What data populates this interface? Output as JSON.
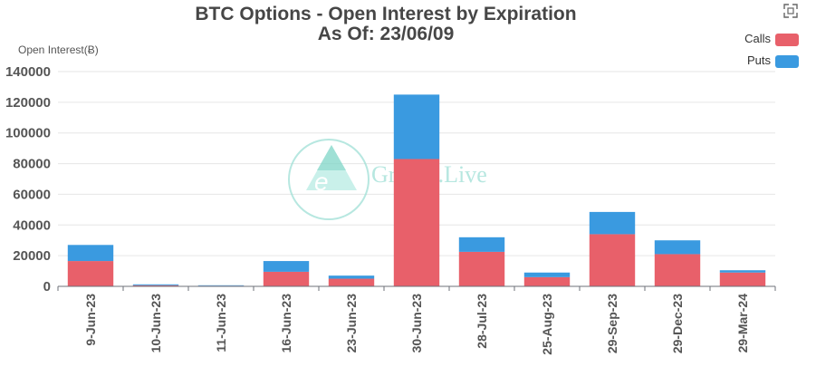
{
  "chart_data": {
    "type": "bar",
    "stacked": true,
    "title": "BTC Options - Open Interest by Expiration",
    "subtitle": "As Of: 23/06/09",
    "ylabel": "Open Interest(Ƀ)",
    "xlabel": "",
    "ylim": [
      0,
      140000
    ],
    "yticks": [
      0,
      20000,
      40000,
      60000,
      80000,
      100000,
      120000,
      140000
    ],
    "grid": true,
    "legend_position": "top-right",
    "categories": [
      "9-Jun-23",
      "10-Jun-23",
      "11-Jun-23",
      "16-Jun-23",
      "23-Jun-23",
      "30-Jun-23",
      "28-Jul-23",
      "25-Aug-23",
      "29-Sep-23",
      "29-Dec-23",
      "29-Mar-24"
    ],
    "series": [
      {
        "name": "Calls",
        "color": "#e8606a",
        "values": [
          16500,
          700,
          400,
          9500,
          5000,
          83000,
          22500,
          6000,
          34000,
          21000,
          9000
        ]
      },
      {
        "name": "Puts",
        "color": "#3a9ae0",
        "values": [
          10500,
          600,
          300,
          7000,
          2000,
          42000,
          9500,
          3000,
          14500,
          9000,
          1500
        ]
      }
    ]
  },
  "watermark": {
    "text": "Greeks.Live",
    "icon": "greeks-live-logo-icon"
  },
  "toolbar": {
    "fullscreen_icon": "fullscreen-icon"
  }
}
